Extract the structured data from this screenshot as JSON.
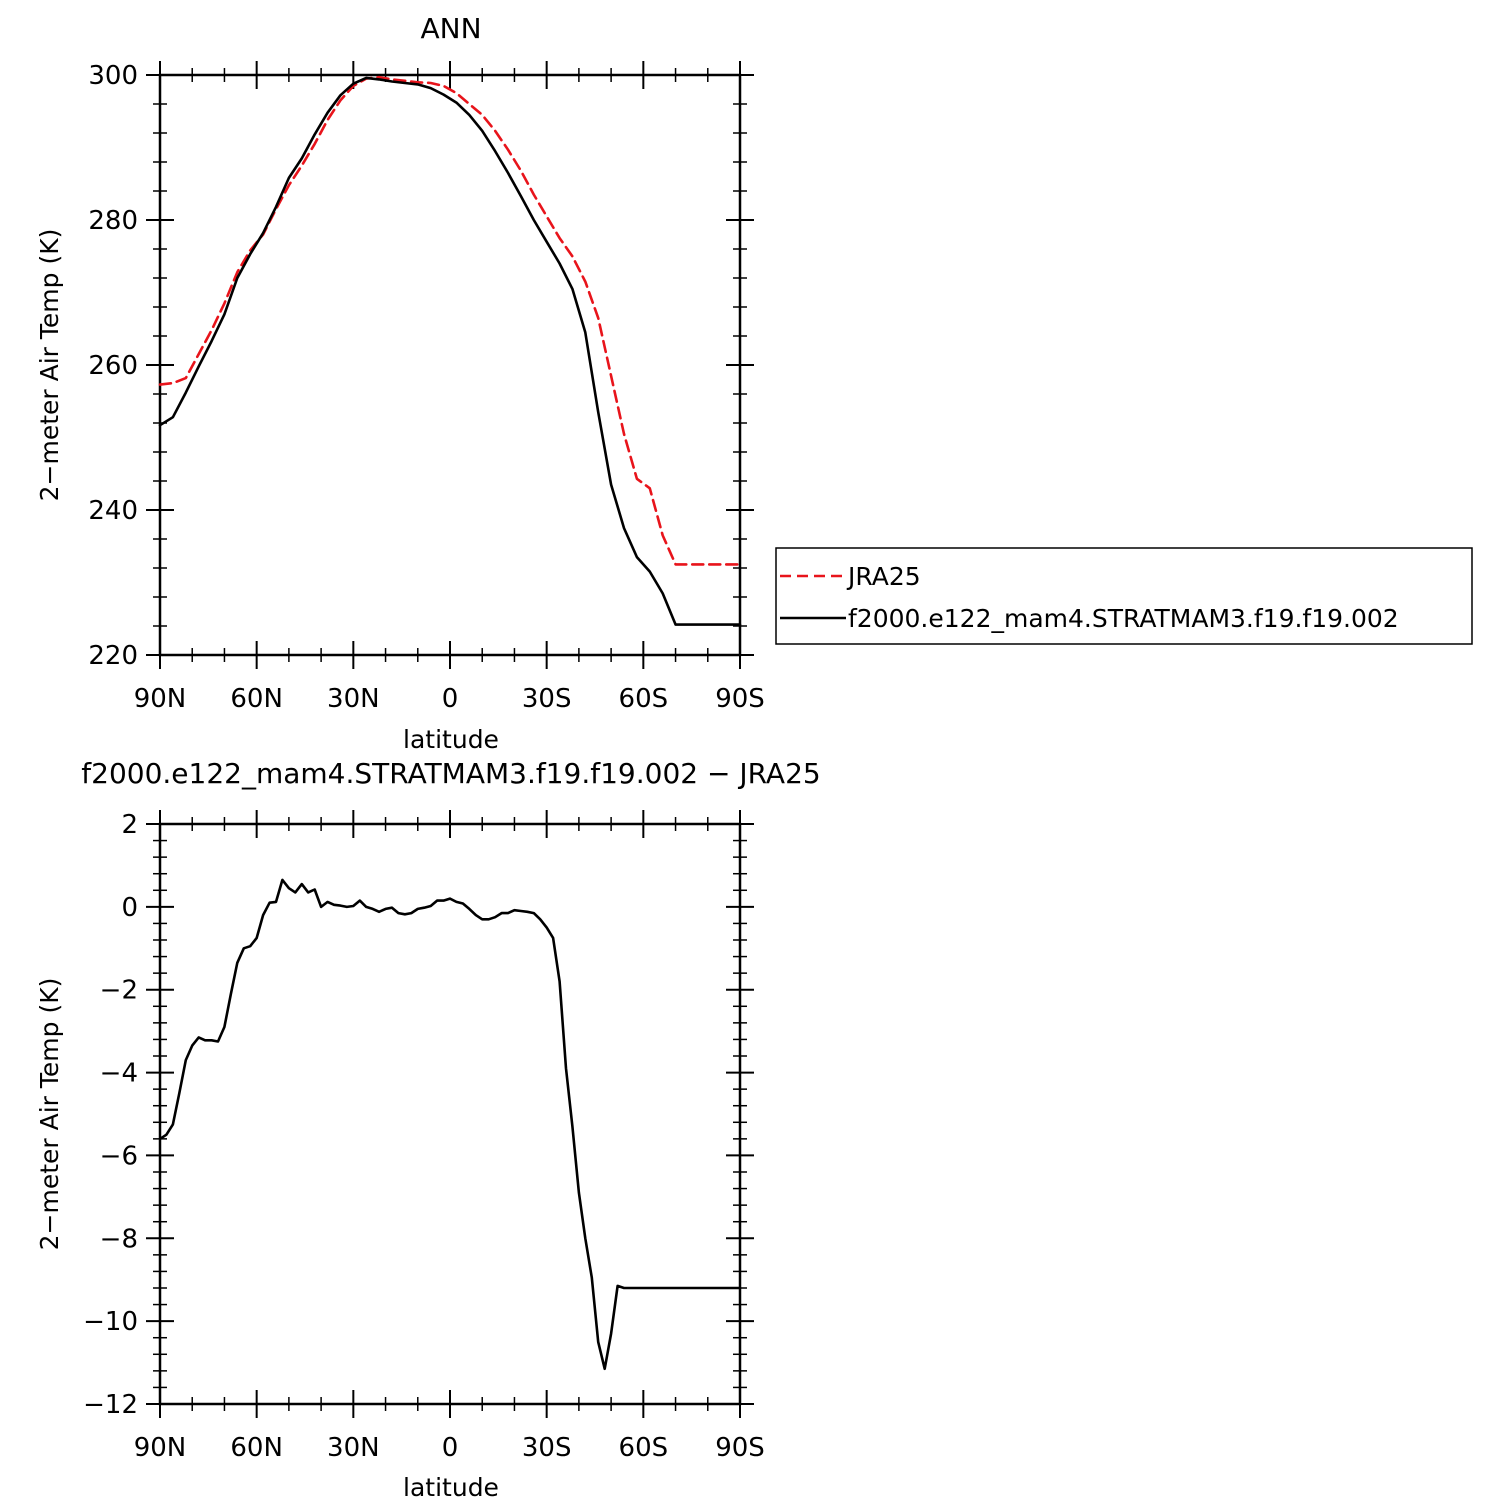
{
  "chart_data": [
    {
      "type": "line",
      "title": "ANN",
      "xlabel": "latitude",
      "ylabel": "2−meter Air Temp (K)",
      "xlim": [
        -90,
        90
      ],
      "ylim": [
        220,
        300
      ],
      "x_ticks": [
        -90,
        -60,
        -30,
        0,
        30,
        60,
        90
      ],
      "x_tick_labels": [
        "90N",
        "60N",
        "30N",
        "0",
        "30S",
        "60S",
        "90S"
      ],
      "y_ticks": [
        220,
        240,
        260,
        280,
        300
      ],
      "y_tick_labels": [
        "220",
        "240",
        "260",
        "280",
        "300"
      ],
      "legend": {
        "placement": "right"
      },
      "series": [
        {
          "name": "JRA25",
          "color": "#e8141b",
          "dash": "dashed",
          "x": [
            -90,
            -86,
            -82,
            -78,
            -74,
            -70,
            -66,
            -62,
            -58,
            -54,
            -50,
            -46,
            -42,
            -38,
            -34,
            -30,
            -26,
            -22,
            -18,
            -14,
            -10,
            -6,
            -2,
            2,
            6,
            10,
            14,
            18,
            22,
            26,
            30,
            34,
            38,
            42,
            46,
            50,
            54,
            58,
            62,
            66,
            70,
            74,
            78,
            82,
            86,
            90
          ],
          "values": [
            257.3,
            257.5,
            258.2,
            261.5,
            264.8,
            268.5,
            272.8,
            275.8,
            278.0,
            281.5,
            284.8,
            287.5,
            290.5,
            293.8,
            296.5,
            298.5,
            299.5,
            299.7,
            299.4,
            299.2,
            299.0,
            298.9,
            298.5,
            297.5,
            296.0,
            294.5,
            292.3,
            289.7,
            286.8,
            283.5,
            280.5,
            277.5,
            275.0,
            271.5,
            266.5,
            258.5,
            250.5,
            244.3,
            243.0,
            236.5,
            232.5,
            232.5,
            232.5,
            232.5,
            232.5,
            232.5
          ]
        },
        {
          "name": "f2000.e122_mam4.STRATMAM3.f19.f19.002",
          "color": "#000000",
          "dash": "solid",
          "x": [
            -90,
            -86,
            -82,
            -78,
            -74,
            -70,
            -66,
            -62,
            -58,
            -54,
            -50,
            -46,
            -42,
            -38,
            -34,
            -30,
            -26,
            -22,
            -18,
            -14,
            -10,
            -6,
            -2,
            2,
            6,
            10,
            14,
            18,
            22,
            26,
            30,
            34,
            38,
            42,
            46,
            50,
            54,
            58,
            62,
            66,
            70,
            74,
            78,
            82,
            86,
            90
          ],
          "values": [
            251.7,
            252.8,
            256.2,
            259.8,
            263.3,
            267.0,
            272.0,
            275.3,
            278.2,
            281.8,
            285.8,
            288.5,
            291.8,
            294.8,
            297.2,
            298.8,
            299.6,
            299.4,
            299.1,
            298.9,
            298.7,
            298.2,
            297.3,
            296.2,
            294.5,
            292.3,
            289.5,
            286.5,
            283.3,
            280.0,
            277.0,
            274.0,
            270.5,
            264.5,
            253.5,
            243.5,
            237.5,
            233.5,
            231.5,
            228.5,
            224.2,
            224.2,
            224.2,
            224.2,
            224.2,
            224.2
          ]
        }
      ]
    },
    {
      "type": "line",
      "title": "f2000.e122_mam4.STRATMAM3.f19.f19.002 − JRA25",
      "xlabel": "latitude",
      "ylabel": "2−meter Air Temp (K)",
      "xlim": [
        -90,
        90
      ],
      "ylim": [
        -12,
        2
      ],
      "x_ticks": [
        -90,
        -60,
        -30,
        0,
        30,
        60,
        90
      ],
      "x_tick_labels": [
        "90N",
        "60N",
        "30N",
        "0",
        "30S",
        "60S",
        "90S"
      ],
      "y_ticks": [
        -12,
        -10,
        -8,
        -6,
        -4,
        -2,
        0,
        2
      ],
      "y_tick_labels": [
        "−12",
        "−10",
        "−8",
        "−6",
        "−4",
        "−2",
        "0",
        "2"
      ],
      "series": [
        {
          "color": "#000000",
          "dash": "solid",
          "x": [
            -90,
            -88,
            -86,
            -84,
            -82,
            -80,
            -78,
            -76,
            -74,
            -72,
            -70,
            -68,
            -66,
            -64,
            -62,
            -60,
            -58,
            -56,
            -54,
            -52,
            -50,
            -48,
            -46,
            -44,
            -42,
            -40,
            -38,
            -36,
            -34,
            -32,
            -30,
            -28,
            -26,
            -24,
            -22,
            -20,
            -18,
            -16,
            -14,
            -12,
            -10,
            -8,
            -6,
            -4,
            -2,
            0,
            2,
            4,
            6,
            8,
            10,
            12,
            14,
            16,
            18,
            20,
            22,
            24,
            26,
            28,
            30,
            32,
            34,
            36,
            38,
            40,
            42,
            44,
            46,
            48,
            50,
            52,
            54,
            56,
            58,
            60,
            62,
            64,
            66,
            68,
            70,
            72,
            74,
            76,
            78,
            80,
            82,
            84,
            86,
            88,
            90
          ],
          "values": [
            -5.6,
            -5.5,
            -5.25,
            -4.5,
            -3.7,
            -3.35,
            -3.15,
            -3.22,
            -3.22,
            -3.25,
            -2.9,
            -2.1,
            -1.35,
            -1.0,
            -0.95,
            -0.75,
            -0.2,
            0.1,
            0.12,
            0.65,
            0.45,
            0.35,
            0.55,
            0.35,
            0.42,
            0.0,
            0.12,
            0.05,
            0.03,
            0.0,
            0.02,
            0.15,
            0.0,
            -0.05,
            -0.12,
            -0.05,
            -0.02,
            -0.15,
            -0.18,
            -0.15,
            -0.05,
            -0.02,
            0.02,
            0.15,
            0.15,
            0.2,
            0.12,
            0.08,
            -0.05,
            -0.2,
            -0.3,
            -0.3,
            -0.25,
            -0.15,
            -0.15,
            -0.08,
            -0.1,
            -0.12,
            -0.15,
            -0.3,
            -0.5,
            -0.75,
            -1.8,
            -3.9,
            -5.3,
            -6.9,
            -8.0,
            -8.95,
            -10.5,
            -11.15,
            -10.3,
            -9.15,
            -9.2,
            -9.2,
            -9.2,
            -9.2,
            -9.2,
            -9.2,
            -9.2,
            -9.2,
            -9.2,
            -9.2,
            -9.2,
            -9.2,
            -9.2,
            -9.2,
            -9.2,
            -9.2,
            -9.2,
            -9.2,
            -9.2
          ]
        }
      ]
    }
  ]
}
